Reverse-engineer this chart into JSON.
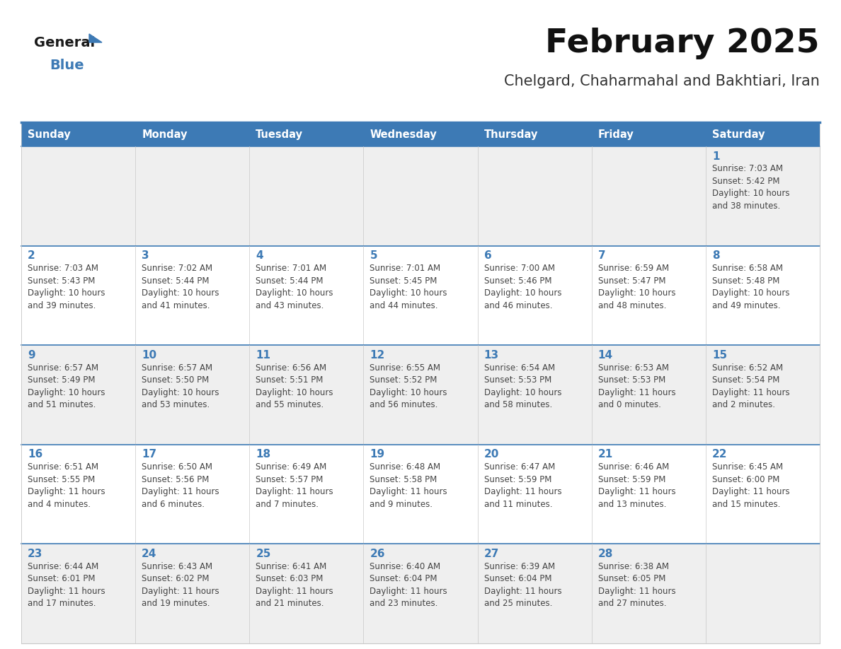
{
  "title": "February 2025",
  "subtitle": "Chelgard, Chaharmahal and Bakhtiari, Iran",
  "days_of_week": [
    "Sunday",
    "Monday",
    "Tuesday",
    "Wednesday",
    "Thursday",
    "Friday",
    "Saturday"
  ],
  "header_bg": "#3d7ab5",
  "header_text": "#ffffff",
  "row_bg_odd": "#efefef",
  "row_bg_even": "#ffffff",
  "cell_border_color": "#c8c8c8",
  "row_separator_color": "#3d7ab5",
  "day_num_color": "#3d7ab5",
  "info_color": "#444444",
  "title_color": "#111111",
  "subtitle_color": "#333333",
  "logo_general_color": "#1a1a1a",
  "logo_blue_color": "#3d7ab5",
  "logo_triangle_color": "#3d7ab5",
  "calendar": [
    [
      null,
      null,
      null,
      null,
      null,
      null,
      {
        "day": "1",
        "sunrise": "Sunrise: 7:03 AM",
        "sunset": "Sunset: 5:42 PM",
        "daylight1": "Daylight: 10 hours",
        "daylight2": "and 38 minutes."
      }
    ],
    [
      {
        "day": "2",
        "sunrise": "Sunrise: 7:03 AM",
        "sunset": "Sunset: 5:43 PM",
        "daylight1": "Daylight: 10 hours",
        "daylight2": "and 39 minutes."
      },
      {
        "day": "3",
        "sunrise": "Sunrise: 7:02 AM",
        "sunset": "Sunset: 5:44 PM",
        "daylight1": "Daylight: 10 hours",
        "daylight2": "and 41 minutes."
      },
      {
        "day": "4",
        "sunrise": "Sunrise: 7:01 AM",
        "sunset": "Sunset: 5:44 PM",
        "daylight1": "Daylight: 10 hours",
        "daylight2": "and 43 minutes."
      },
      {
        "day": "5",
        "sunrise": "Sunrise: 7:01 AM",
        "sunset": "Sunset: 5:45 PM",
        "daylight1": "Daylight: 10 hours",
        "daylight2": "and 44 minutes."
      },
      {
        "day": "6",
        "sunrise": "Sunrise: 7:00 AM",
        "sunset": "Sunset: 5:46 PM",
        "daylight1": "Daylight: 10 hours",
        "daylight2": "and 46 minutes."
      },
      {
        "day": "7",
        "sunrise": "Sunrise: 6:59 AM",
        "sunset": "Sunset: 5:47 PM",
        "daylight1": "Daylight: 10 hours",
        "daylight2": "and 48 minutes."
      },
      {
        "day": "8",
        "sunrise": "Sunrise: 6:58 AM",
        "sunset": "Sunset: 5:48 PM",
        "daylight1": "Daylight: 10 hours",
        "daylight2": "and 49 minutes."
      }
    ],
    [
      {
        "day": "9",
        "sunrise": "Sunrise: 6:57 AM",
        "sunset": "Sunset: 5:49 PM",
        "daylight1": "Daylight: 10 hours",
        "daylight2": "and 51 minutes."
      },
      {
        "day": "10",
        "sunrise": "Sunrise: 6:57 AM",
        "sunset": "Sunset: 5:50 PM",
        "daylight1": "Daylight: 10 hours",
        "daylight2": "and 53 minutes."
      },
      {
        "day": "11",
        "sunrise": "Sunrise: 6:56 AM",
        "sunset": "Sunset: 5:51 PM",
        "daylight1": "Daylight: 10 hours",
        "daylight2": "and 55 minutes."
      },
      {
        "day": "12",
        "sunrise": "Sunrise: 6:55 AM",
        "sunset": "Sunset: 5:52 PM",
        "daylight1": "Daylight: 10 hours",
        "daylight2": "and 56 minutes."
      },
      {
        "day": "13",
        "sunrise": "Sunrise: 6:54 AM",
        "sunset": "Sunset: 5:53 PM",
        "daylight1": "Daylight: 10 hours",
        "daylight2": "and 58 minutes."
      },
      {
        "day": "14",
        "sunrise": "Sunrise: 6:53 AM",
        "sunset": "Sunset: 5:53 PM",
        "daylight1": "Daylight: 11 hours",
        "daylight2": "and 0 minutes."
      },
      {
        "day": "15",
        "sunrise": "Sunrise: 6:52 AM",
        "sunset": "Sunset: 5:54 PM",
        "daylight1": "Daylight: 11 hours",
        "daylight2": "and 2 minutes."
      }
    ],
    [
      {
        "day": "16",
        "sunrise": "Sunrise: 6:51 AM",
        "sunset": "Sunset: 5:55 PM",
        "daylight1": "Daylight: 11 hours",
        "daylight2": "and 4 minutes."
      },
      {
        "day": "17",
        "sunrise": "Sunrise: 6:50 AM",
        "sunset": "Sunset: 5:56 PM",
        "daylight1": "Daylight: 11 hours",
        "daylight2": "and 6 minutes."
      },
      {
        "day": "18",
        "sunrise": "Sunrise: 6:49 AM",
        "sunset": "Sunset: 5:57 PM",
        "daylight1": "Daylight: 11 hours",
        "daylight2": "and 7 minutes."
      },
      {
        "day": "19",
        "sunrise": "Sunrise: 6:48 AM",
        "sunset": "Sunset: 5:58 PM",
        "daylight1": "Daylight: 11 hours",
        "daylight2": "and 9 minutes."
      },
      {
        "day": "20",
        "sunrise": "Sunrise: 6:47 AM",
        "sunset": "Sunset: 5:59 PM",
        "daylight1": "Daylight: 11 hours",
        "daylight2": "and 11 minutes."
      },
      {
        "day": "21",
        "sunrise": "Sunrise: 6:46 AM",
        "sunset": "Sunset: 5:59 PM",
        "daylight1": "Daylight: 11 hours",
        "daylight2": "and 13 minutes."
      },
      {
        "day": "22",
        "sunrise": "Sunrise: 6:45 AM",
        "sunset": "Sunset: 6:00 PM",
        "daylight1": "Daylight: 11 hours",
        "daylight2": "and 15 minutes."
      }
    ],
    [
      {
        "day": "23",
        "sunrise": "Sunrise: 6:44 AM",
        "sunset": "Sunset: 6:01 PM",
        "daylight1": "Daylight: 11 hours",
        "daylight2": "and 17 minutes."
      },
      {
        "day": "24",
        "sunrise": "Sunrise: 6:43 AM",
        "sunset": "Sunset: 6:02 PM",
        "daylight1": "Daylight: 11 hours",
        "daylight2": "and 19 minutes."
      },
      {
        "day": "25",
        "sunrise": "Sunrise: 6:41 AM",
        "sunset": "Sunset: 6:03 PM",
        "daylight1": "Daylight: 11 hours",
        "daylight2": "and 21 minutes."
      },
      {
        "day": "26",
        "sunrise": "Sunrise: 6:40 AM",
        "sunset": "Sunset: 6:04 PM",
        "daylight1": "Daylight: 11 hours",
        "daylight2": "and 23 minutes."
      },
      {
        "day": "27",
        "sunrise": "Sunrise: 6:39 AM",
        "sunset": "Sunset: 6:04 PM",
        "daylight1": "Daylight: 11 hours",
        "daylight2": "and 25 minutes."
      },
      {
        "day": "28",
        "sunrise": "Sunrise: 6:38 AM",
        "sunset": "Sunset: 6:05 PM",
        "daylight1": "Daylight: 11 hours",
        "daylight2": "and 27 minutes."
      },
      null
    ]
  ]
}
